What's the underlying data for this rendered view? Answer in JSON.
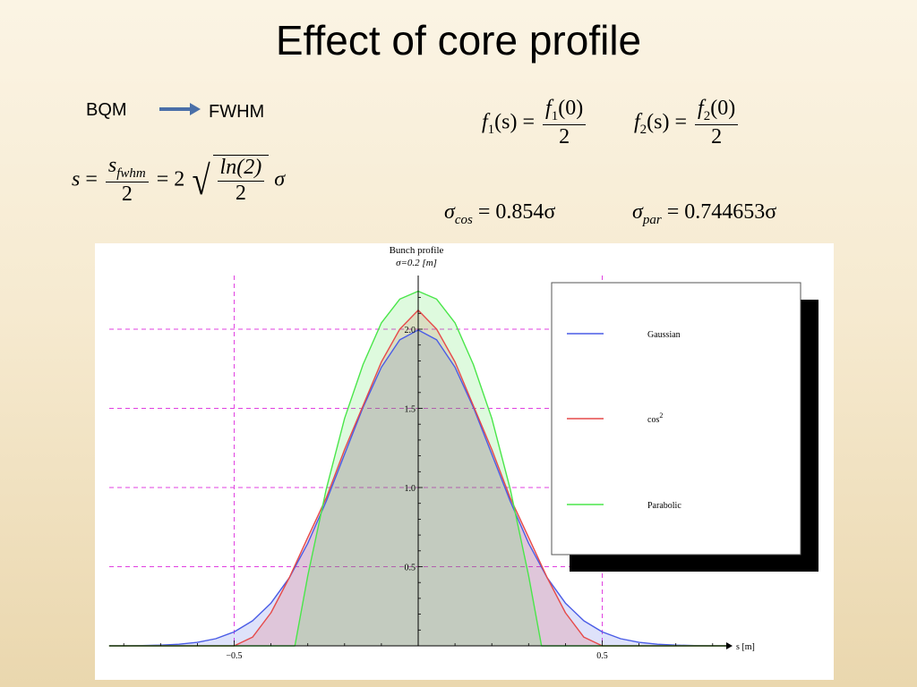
{
  "slide": {
    "title": "Effect of core profile",
    "bqm_label": "BQM",
    "fwhm_label": "FWHM"
  },
  "equations": {
    "s_lhs": "s",
    "s_equals": "=",
    "s_num_main": "s",
    "s_num_sub": "fwhm",
    "s_den": "2",
    "s_eq2": "= 2",
    "s_sqrt_num": "ln(2)",
    "s_sqrt_den": "2",
    "s_sigma": "σ",
    "f1_lhs": "f",
    "f1_sub": "1",
    "f1_arg": "(s)",
    "f1_equals": "=",
    "f1_num": "f",
    "f1_num_sub": "1",
    "f1_num_arg": "(0)",
    "f1_den": "2",
    "f2_lhs": "f",
    "f2_sub": "2",
    "f2_arg": "(s)",
    "f2_equals": "=",
    "f2_num": "f",
    "f2_num_sub": "2",
    "f2_num_arg": "(0)",
    "f2_den": "2",
    "sigma_cos_sym": "σ",
    "sigma_cos_sub": "cos",
    "sigma_cos_rhs": "= 0.854σ",
    "sigma_par_sym": "σ",
    "sigma_par_sub": "par",
    "sigma_par_rhs": "= 0.744653σ"
  },
  "chart_data": {
    "type": "area",
    "title": "Bunch profile",
    "subtitle": "σ=0.2 [m]",
    "xlabel": "s [m]",
    "ylabel": "",
    "xlim": [
      -0.84,
      0.84
    ],
    "ylim": [
      0,
      2.26
    ],
    "x_ticks": [
      -0.5,
      0.5
    ],
    "x_tick_labels": [
      "−0.5",
      "0.5"
    ],
    "y_ticks": [
      0.5,
      1.0,
      1.5,
      2.0
    ],
    "y_tick_labels": [
      "0.5",
      "1.0",
      "1.5",
      "2.0"
    ],
    "grid": "dashed magenta at x=±0.5 and y=0.5,1.0,1.5,2.0",
    "legend_position": "right",
    "sigma": 0.2,
    "series": [
      {
        "name": "Gaussian",
        "color": "#4a5ce6",
        "peak": 1.995,
        "x": [
          -0.84,
          -0.8,
          -0.75,
          -0.7,
          -0.65,
          -0.6,
          -0.55,
          -0.5,
          -0.45,
          -0.4,
          -0.35,
          -0.3,
          -0.25,
          -0.2,
          -0.15,
          -0.1,
          -0.05,
          0,
          0.05,
          0.1,
          0.15,
          0.2,
          0.25,
          0.3,
          0.35,
          0.4,
          0.45,
          0.5,
          0.55,
          0.6,
          0.65,
          0.7,
          0.75,
          0.8,
          0.84
        ],
        "values": [
          0.0003,
          0.0007,
          0.0018,
          0.0044,
          0.01,
          0.022,
          0.045,
          0.088,
          0.158,
          0.27,
          0.431,
          0.648,
          0.913,
          1.21,
          1.506,
          1.76,
          1.933,
          1.995,
          1.933,
          1.76,
          1.506,
          1.21,
          0.913,
          0.648,
          0.431,
          0.27,
          0.158,
          0.088,
          0.045,
          0.022,
          0.01,
          0.0044,
          0.0018,
          0.0007,
          0.0003
        ]
      },
      {
        "name": "cos²",
        "color": "#e64a4a",
        "peak": 2.12,
        "x": [
          -0.84,
          -0.5,
          -0.45,
          -0.4,
          -0.35,
          -0.3,
          -0.25,
          -0.2,
          -0.15,
          -0.1,
          -0.05,
          0,
          0.05,
          0.1,
          0.15,
          0.2,
          0.25,
          0.3,
          0.35,
          0.4,
          0.45,
          0.5,
          0.84
        ],
        "values": [
          0,
          0,
          0.055,
          0.209,
          0.432,
          0.685,
          0.934,
          1.24,
          1.517,
          1.793,
          2.0,
          2.12,
          2.0,
          1.793,
          1.517,
          1.24,
          0.934,
          0.685,
          0.432,
          0.209,
          0.055,
          0,
          0
        ]
      },
      {
        "name": "Parabolic",
        "color": "#4ae64a",
        "peak": 2.24,
        "x": [
          -0.84,
          -0.335,
          -0.3,
          -0.25,
          -0.2,
          -0.15,
          -0.1,
          -0.05,
          0,
          0.05,
          0.1,
          0.15,
          0.2,
          0.25,
          0.3,
          0.335,
          0.84
        ],
        "values": [
          0,
          0,
          0.443,
          0.989,
          1.437,
          1.777,
          2.04,
          2.19,
          2.24,
          2.19,
          2.04,
          1.777,
          1.437,
          0.989,
          0.443,
          0,
          0
        ]
      }
    ],
    "legend": [
      {
        "label": "Gaussian",
        "color": "#4a5ce6"
      },
      {
        "label": "cos",
        "sup": "2",
        "color": "#e64a4a"
      },
      {
        "label": "Parabolic",
        "color": "#4ae64a"
      }
    ]
  }
}
